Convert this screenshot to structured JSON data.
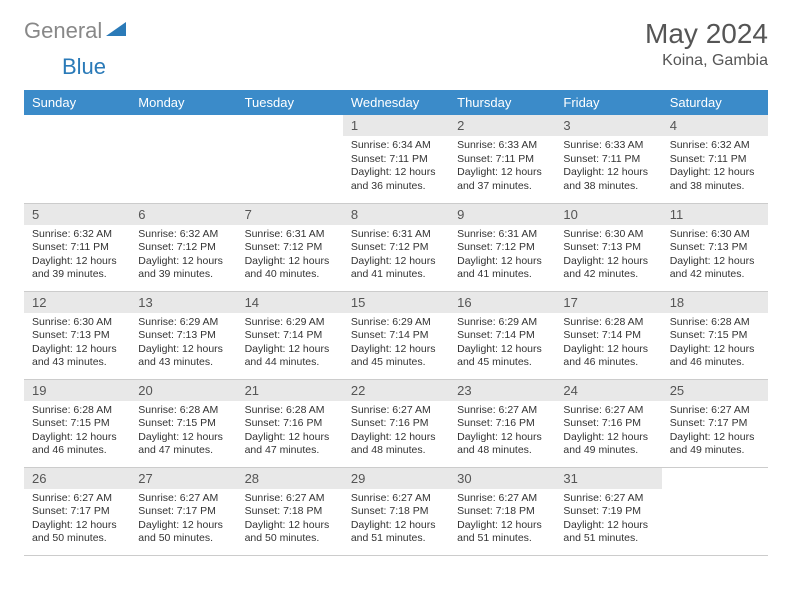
{
  "logo": {
    "text1": "General",
    "text2": "Blue"
  },
  "title": "May 2024",
  "subtitle": "Koina, Gambia",
  "colors": {
    "header_bg": "#3b8bc9",
    "header_text": "#ffffff",
    "daynum_bg": "#e8e8e8",
    "text": "#333333",
    "logo_gray": "#888888",
    "logo_blue": "#2a7ab8"
  },
  "dayHeaders": [
    "Sunday",
    "Monday",
    "Tuesday",
    "Wednesday",
    "Thursday",
    "Friday",
    "Saturday"
  ],
  "firstDayOffset": 3,
  "daysInMonth": 31,
  "days": {
    "1": {
      "sunrise": "6:34 AM",
      "sunset": "7:11 PM",
      "daylight": "12 hours and 36 minutes."
    },
    "2": {
      "sunrise": "6:33 AM",
      "sunset": "7:11 PM",
      "daylight": "12 hours and 37 minutes."
    },
    "3": {
      "sunrise": "6:33 AM",
      "sunset": "7:11 PM",
      "daylight": "12 hours and 38 minutes."
    },
    "4": {
      "sunrise": "6:32 AM",
      "sunset": "7:11 PM",
      "daylight": "12 hours and 38 minutes."
    },
    "5": {
      "sunrise": "6:32 AM",
      "sunset": "7:11 PM",
      "daylight": "12 hours and 39 minutes."
    },
    "6": {
      "sunrise": "6:32 AM",
      "sunset": "7:12 PM",
      "daylight": "12 hours and 39 minutes."
    },
    "7": {
      "sunrise": "6:31 AM",
      "sunset": "7:12 PM",
      "daylight": "12 hours and 40 minutes."
    },
    "8": {
      "sunrise": "6:31 AM",
      "sunset": "7:12 PM",
      "daylight": "12 hours and 41 minutes."
    },
    "9": {
      "sunrise": "6:31 AM",
      "sunset": "7:12 PM",
      "daylight": "12 hours and 41 minutes."
    },
    "10": {
      "sunrise": "6:30 AM",
      "sunset": "7:13 PM",
      "daylight": "12 hours and 42 minutes."
    },
    "11": {
      "sunrise": "6:30 AM",
      "sunset": "7:13 PM",
      "daylight": "12 hours and 42 minutes."
    },
    "12": {
      "sunrise": "6:30 AM",
      "sunset": "7:13 PM",
      "daylight": "12 hours and 43 minutes."
    },
    "13": {
      "sunrise": "6:29 AM",
      "sunset": "7:13 PM",
      "daylight": "12 hours and 43 minutes."
    },
    "14": {
      "sunrise": "6:29 AM",
      "sunset": "7:14 PM",
      "daylight": "12 hours and 44 minutes."
    },
    "15": {
      "sunrise": "6:29 AM",
      "sunset": "7:14 PM",
      "daylight": "12 hours and 45 minutes."
    },
    "16": {
      "sunrise": "6:29 AM",
      "sunset": "7:14 PM",
      "daylight": "12 hours and 45 minutes."
    },
    "17": {
      "sunrise": "6:28 AM",
      "sunset": "7:14 PM",
      "daylight": "12 hours and 46 minutes."
    },
    "18": {
      "sunrise": "6:28 AM",
      "sunset": "7:15 PM",
      "daylight": "12 hours and 46 minutes."
    },
    "19": {
      "sunrise": "6:28 AM",
      "sunset": "7:15 PM",
      "daylight": "12 hours and 46 minutes."
    },
    "20": {
      "sunrise": "6:28 AM",
      "sunset": "7:15 PM",
      "daylight": "12 hours and 47 minutes."
    },
    "21": {
      "sunrise": "6:28 AM",
      "sunset": "7:16 PM",
      "daylight": "12 hours and 47 minutes."
    },
    "22": {
      "sunrise": "6:27 AM",
      "sunset": "7:16 PM",
      "daylight": "12 hours and 48 minutes."
    },
    "23": {
      "sunrise": "6:27 AM",
      "sunset": "7:16 PM",
      "daylight": "12 hours and 48 minutes."
    },
    "24": {
      "sunrise": "6:27 AM",
      "sunset": "7:16 PM",
      "daylight": "12 hours and 49 minutes."
    },
    "25": {
      "sunrise": "6:27 AM",
      "sunset": "7:17 PM",
      "daylight": "12 hours and 49 minutes."
    },
    "26": {
      "sunrise": "6:27 AM",
      "sunset": "7:17 PM",
      "daylight": "12 hours and 50 minutes."
    },
    "27": {
      "sunrise": "6:27 AM",
      "sunset": "7:17 PM",
      "daylight": "12 hours and 50 minutes."
    },
    "28": {
      "sunrise": "6:27 AM",
      "sunset": "7:18 PM",
      "daylight": "12 hours and 50 minutes."
    },
    "29": {
      "sunrise": "6:27 AM",
      "sunset": "7:18 PM",
      "daylight": "12 hours and 51 minutes."
    },
    "30": {
      "sunrise": "6:27 AM",
      "sunset": "7:18 PM",
      "daylight": "12 hours and 51 minutes."
    },
    "31": {
      "sunrise": "6:27 AM",
      "sunset": "7:19 PM",
      "daylight": "12 hours and 51 minutes."
    }
  },
  "labels": {
    "sunrise": "Sunrise: ",
    "sunset": "Sunset: ",
    "daylight": "Daylight: "
  }
}
